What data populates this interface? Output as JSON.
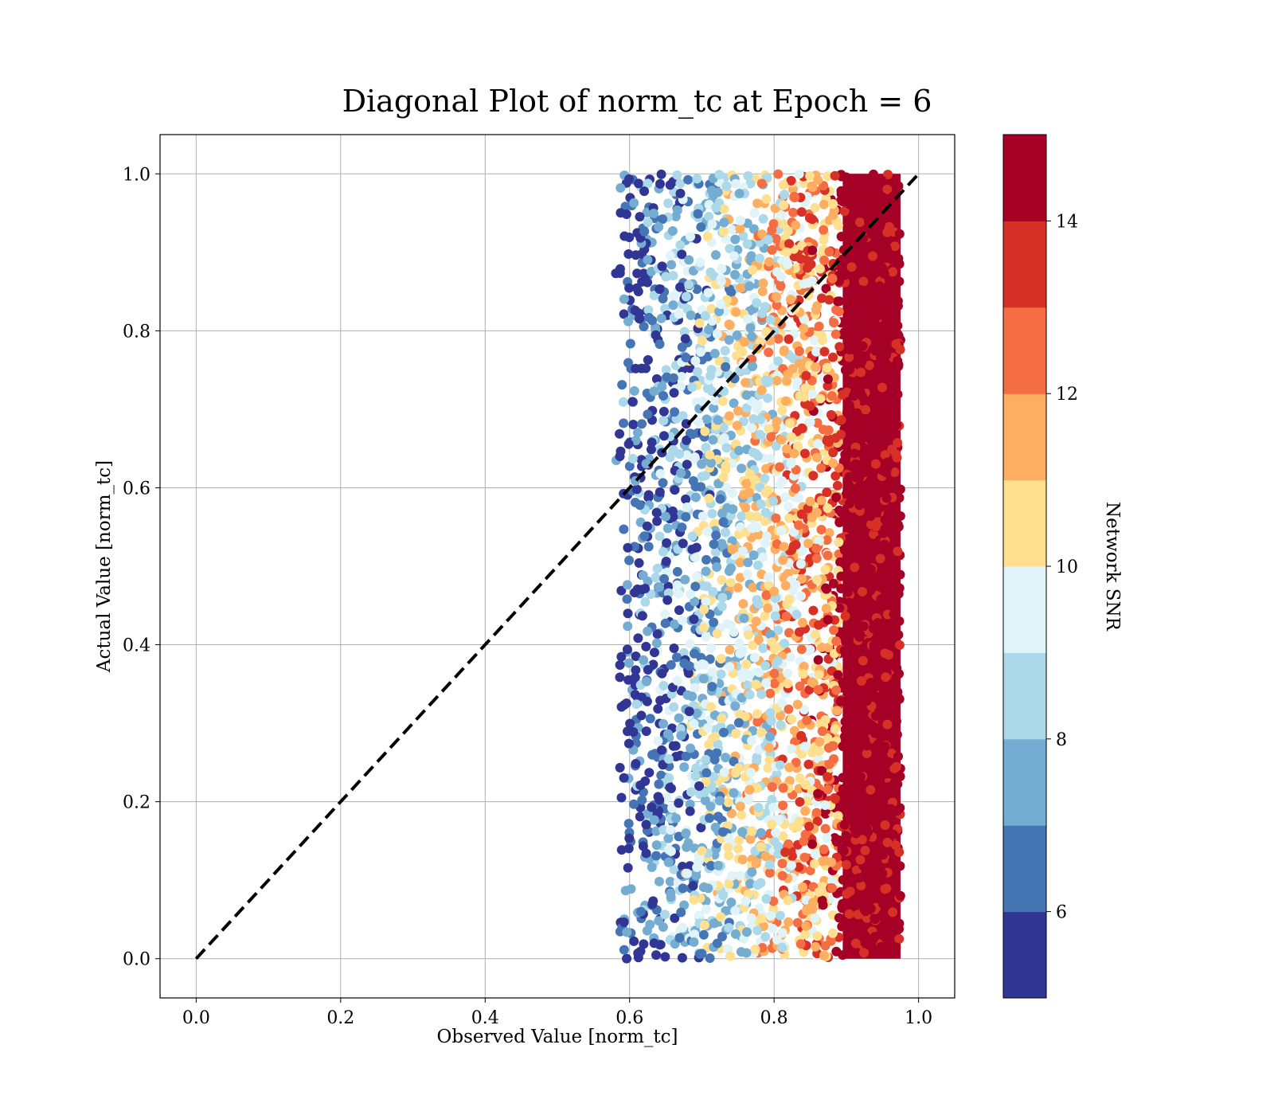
{
  "chart_data": {
    "type": "scatter",
    "title": "Diagonal Plot of norm_tc at Epoch = 6",
    "xlabel": "Observed Value [norm_tc]",
    "ylabel": "Actual Value [norm_tc]",
    "xlim": [
      -0.05,
      1.05
    ],
    "ylim": [
      -0.05,
      1.05
    ],
    "xticks": [
      "0.0",
      "0.2",
      "0.4",
      "0.6",
      "0.8",
      "1.0"
    ],
    "yticks": [
      "0.0",
      "0.2",
      "0.4",
      "0.6",
      "0.8",
      "1.0"
    ],
    "grid": true,
    "reference_line": {
      "style": "dashed",
      "color": "#000000",
      "from": [
        0,
        0
      ],
      "to": [
        1,
        1
      ]
    },
    "scatter_region": {
      "x_range": [
        0.56,
        0.98
      ],
      "y_range": [
        0.0,
        1.0
      ]
    },
    "color_by": "Network SNR",
    "colorbar": {
      "label": "Network SNR",
      "range": [
        5,
        15
      ],
      "ticks": [
        "6",
        "8",
        "10",
        "12",
        "14"
      ],
      "colors": [
        "#313695",
        "#4575b4",
        "#74add1",
        "#abd9e9",
        "#e0f3f8",
        "#fee090",
        "#fdae61",
        "#f46d43",
        "#d73027",
        "#a50026"
      ]
    }
  }
}
